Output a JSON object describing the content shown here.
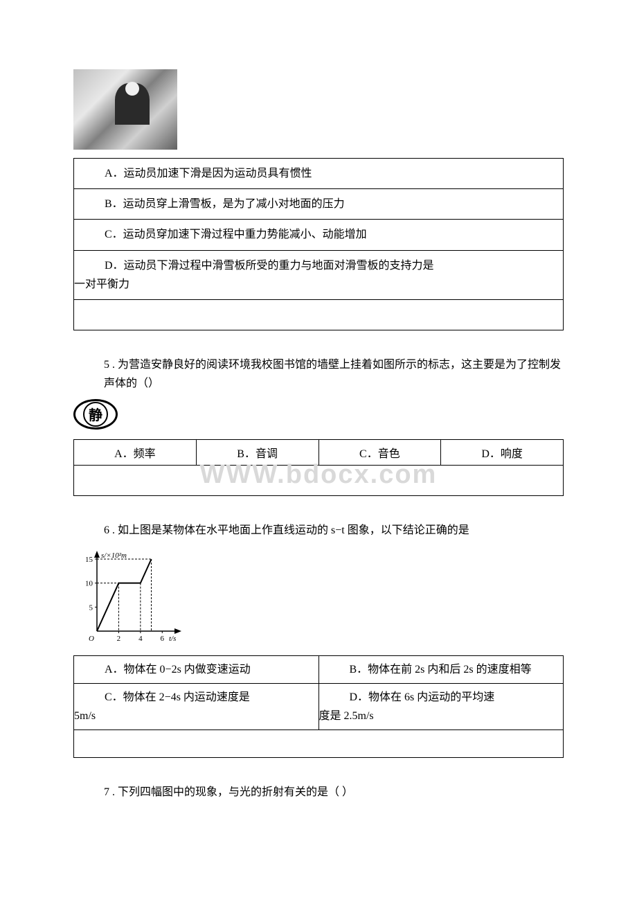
{
  "q4": {
    "optA": "A．运动员加速下滑是因为运动员具有惯性",
    "optB": "B．运动员穿上滑雪板，是为了减小对地面的压力",
    "optC": "C．运动员穿加速下滑过程中重力势能减小、动能增加",
    "optD_line1": "D．运动员下滑过程中滑雪板所受的重力与地面对滑雪板的支持力是",
    "optD_line2": "一对平衡力"
  },
  "q5": {
    "text": "5 . 为营造安静良好的阅读环境我校图书馆的墙壁上挂着如图所示的标志，这主要是为了控制发声体的（）",
    "quiet_char": "静",
    "optA": "A．频率",
    "optB": "B．音调",
    "optC": "C．音色",
    "optD": "D．响度"
  },
  "watermark_text": "WWW.bdocx.com",
  "q6": {
    "text": "6 . 如上图是某物体在水平地面上作直线运动的 s−t 图象，以下结论正确的是",
    "graph": {
      "yaxis_label": "s/×10²m",
      "xaxis_label": "t/s",
      "ylim": [
        0,
        15
      ],
      "yticks": [
        5,
        10,
        15
      ],
      "xlim": [
        0,
        7
      ],
      "xticks": [
        2,
        4,
        6
      ],
      "origin_label": "O",
      "line_points": [
        [
          0,
          0
        ],
        [
          2,
          10
        ],
        [
          4,
          10
        ],
        [
          5,
          15
        ]
      ],
      "dash_color": "#000000",
      "line_color": "#000000",
      "axis_color": "#000000",
      "font_size_pt": 11
    },
    "optA": "A．物体在 0−2s 内做变速运动",
    "optB": "B．物体在前 2s 内和后 2s 的速度相等",
    "optC_line1": "C．物体在 2−4s 内运动速度是",
    "optC_line2": "5m/s",
    "optD_line1": "D．物体在 6s 内运动的平均速",
    "optD_line2": "度是 2.5m/s"
  },
  "q7": {
    "text": "7 . 下列四幅图中的现象，与光的折射有关的是（  ）"
  },
  "colors": {
    "text": "#000000",
    "border": "#000000",
    "background": "#ffffff",
    "watermark": "#d9d9d9"
  }
}
